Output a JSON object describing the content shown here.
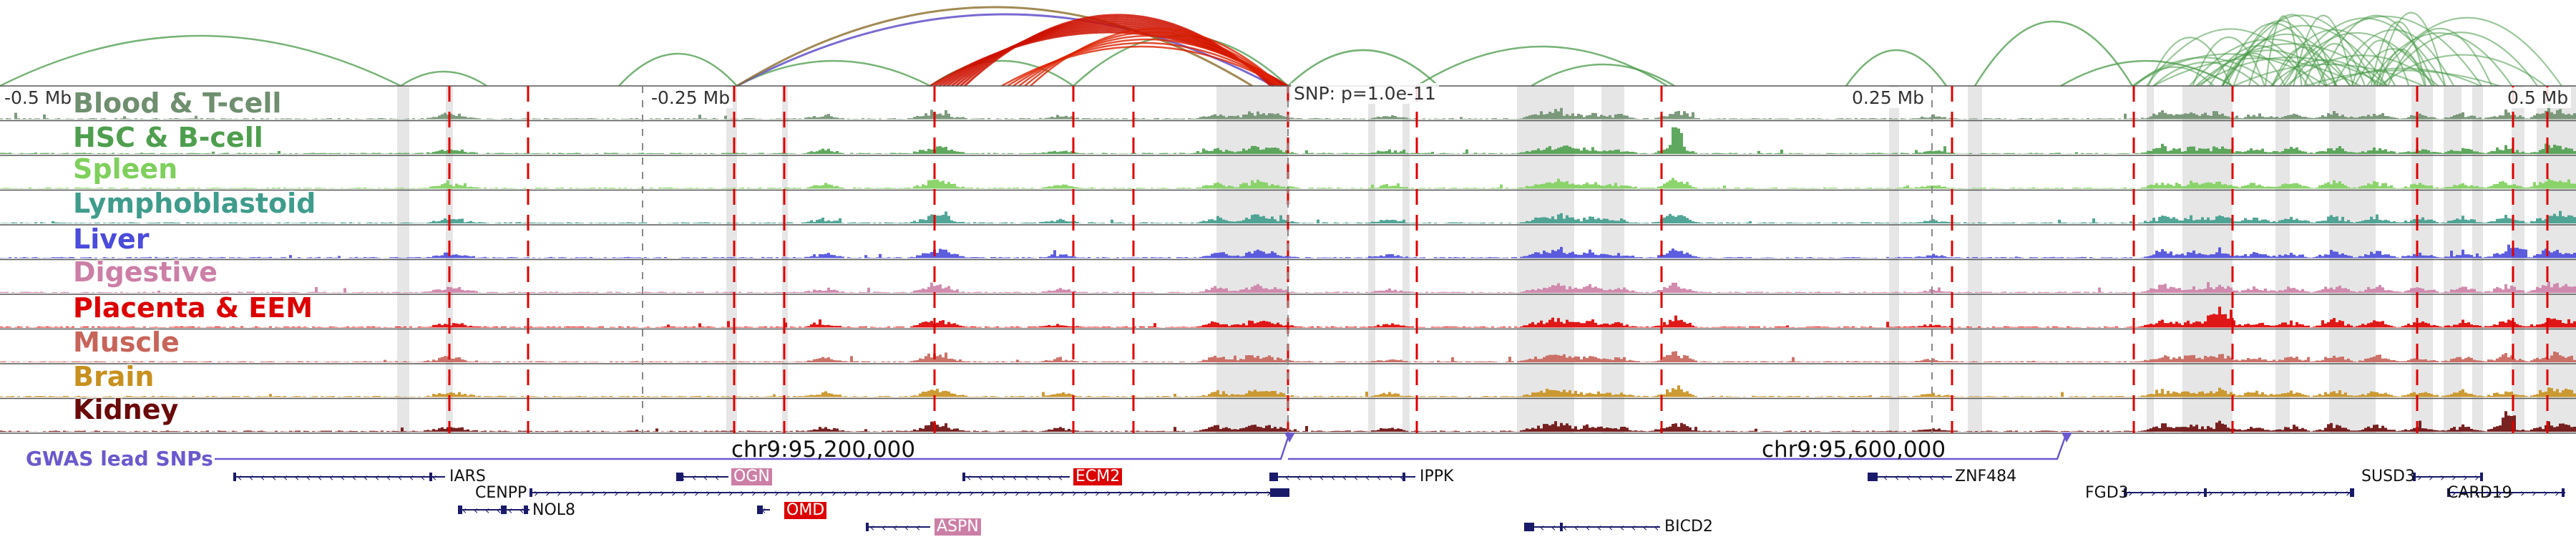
{
  "colors": {
    "blood": "#6f8f6f",
    "hsc": "#4e9e4e",
    "spleen": "#7fd05c",
    "lympho": "#3f9c8c",
    "liver": "#4b4bdc",
    "digestive": "#cc7fa6",
    "placenta": "#dd0000",
    "muscle": "#c8645a",
    "brain": "#c8901e",
    "kidney": "#6a0a0a",
    "gwas": "#6a5acd",
    "arc_green": "#4a9a4a",
    "arc_red": "#cc1100"
  },
  "axis": {
    "left": "-0.5 Mb",
    "mid_left": "-0.25 Mb",
    "snp": "SNP: p=1.0e-11",
    "mid_right": "0.25 Mb",
    "right": "0.5 Mb"
  },
  "tracks": [
    {
      "id": "blood",
      "label": "Blood & T-cell"
    },
    {
      "id": "hsc",
      "label": "HSC & B-cell"
    },
    {
      "id": "spleen",
      "label": "Spleen"
    },
    {
      "id": "lympho",
      "label": "Lymphoblastoid"
    },
    {
      "id": "liver",
      "label": "Liver"
    },
    {
      "id": "digestive",
      "label": "Digestive"
    },
    {
      "id": "placenta",
      "label": "Placenta & EEM"
    },
    {
      "id": "muscle",
      "label": "Muscle"
    },
    {
      "id": "brain",
      "label": "Brain"
    },
    {
      "id": "kidney",
      "label": "Kidney"
    }
  ],
  "gwas": {
    "label": "GWAS lead SNPs"
  },
  "coords": {
    "c1": "chr9:95,200,000",
    "c2": "chr9:95,600,000"
  },
  "genes": [
    {
      "name": "IARS",
      "strand": "-"
    },
    {
      "name": "OGN",
      "strand": "-",
      "highlight": "digestive"
    },
    {
      "name": "ECM2",
      "strand": "-",
      "highlight": "placenta"
    },
    {
      "name": "IPPK",
      "strand": "-"
    },
    {
      "name": "ZNF484",
      "strand": "-"
    },
    {
      "name": "SUSD3",
      "strand": "+"
    },
    {
      "name": "CENPP",
      "strand": "+"
    },
    {
      "name": "FGD3",
      "strand": "+"
    },
    {
      "name": "CARD19",
      "strand": "+"
    },
    {
      "name": "NOL8",
      "strand": "-"
    },
    {
      "name": "OMD",
      "strand": "-",
      "highlight": "placenta"
    },
    {
      "name": "ASPN",
      "strand": "-",
      "highlight": "digestive"
    },
    {
      "name": "BICD2",
      "strand": "-"
    }
  ]
}
